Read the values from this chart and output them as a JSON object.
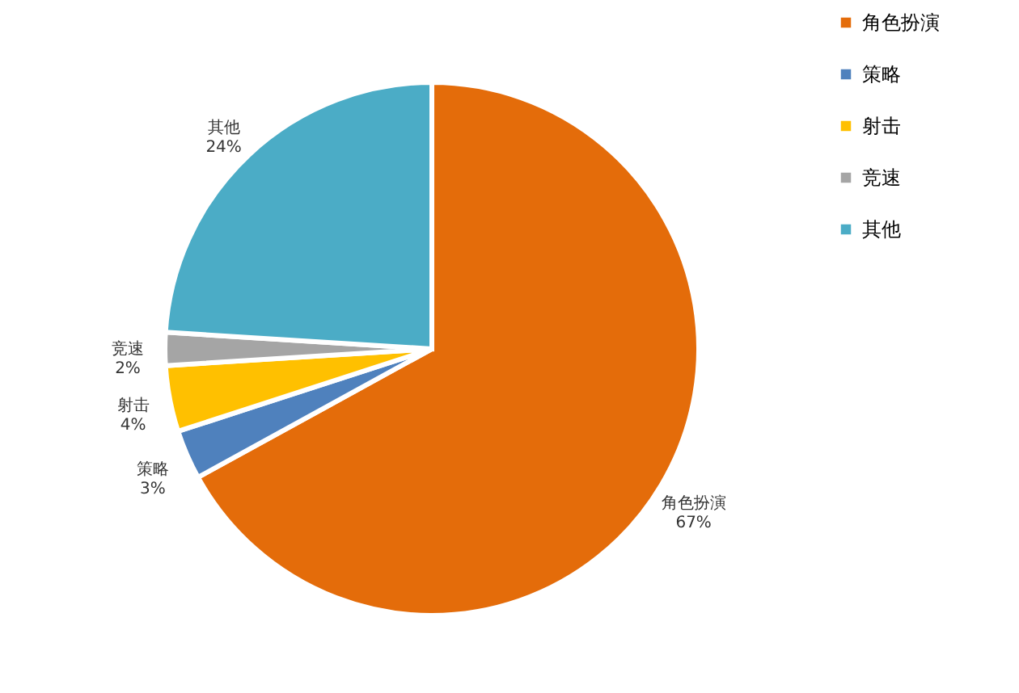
{
  "chart_data": {
    "type": "pie",
    "categories": [
      "角色扮演",
      "策略",
      "射击",
      "竞速",
      "其他"
    ],
    "values": [
      67,
      3,
      4,
      2,
      24
    ],
    "value_labels": [
      "67%",
      "3%",
      "4%",
      "2%",
      "24%"
    ],
    "colors": [
      "#e46c0a",
      "#4f81bd",
      "#ffc000",
      "#a5a5a5",
      "#4bacc6"
    ],
    "legend": "right"
  }
}
